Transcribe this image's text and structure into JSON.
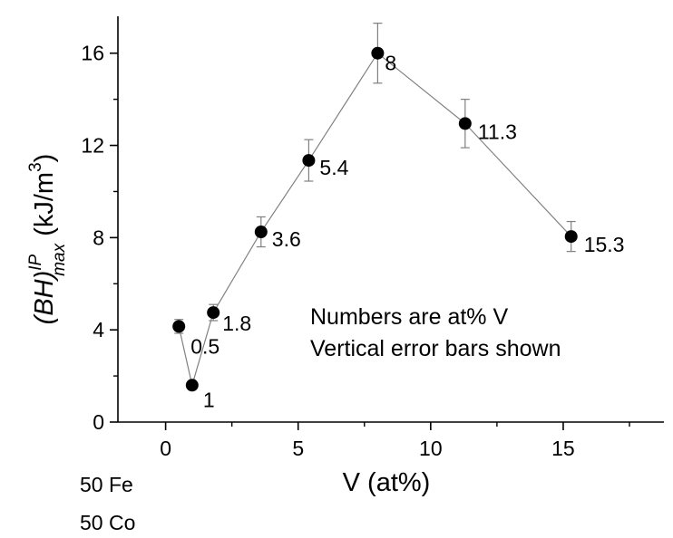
{
  "chart_data": {
    "type": "scatter",
    "connected": true,
    "xlabel": "V (at%)",
    "ylabel": {
      "base": "(BH)",
      "superscript": "IP",
      "subscript": "max",
      "unit_prefix": " (kJ/m",
      "unit_power": "3",
      "unit_suffix": ")"
    },
    "xlim": [
      -1.8,
      18.8
    ],
    "ylim": [
      0,
      17.6
    ],
    "x_ticks": [
      0,
      5,
      10,
      15
    ],
    "y_ticks": [
      0,
      4,
      8,
      12,
      16
    ],
    "x_tick_labels": [
      "0",
      "5",
      "10",
      "15"
    ],
    "y_tick_labels": [
      "0",
      "4",
      "8",
      "12",
      "16"
    ],
    "grid": false,
    "series": [
      {
        "points": [
          {
            "x": 0.5,
            "y": 4.15,
            "err": 0.3,
            "label": "0.5"
          },
          {
            "x": 1.0,
            "y": 1.6,
            "err": 0.0,
            "label": "1"
          },
          {
            "x": 1.8,
            "y": 4.75,
            "err": 0.35,
            "label": "1.8"
          },
          {
            "x": 3.6,
            "y": 8.25,
            "err": 0.65,
            "label": "3.6"
          },
          {
            "x": 5.4,
            "y": 11.35,
            "err": 0.9,
            "label": "5.4"
          },
          {
            "x": 8.0,
            "y": 16.0,
            "err": 1.3,
            "label": "8"
          },
          {
            "x": 11.3,
            "y": 12.95,
            "err": 1.05,
            "label": "11.3"
          },
          {
            "x": 15.3,
            "y": 8.05,
            "err": 0.65,
            "label": "15.3"
          }
        ]
      }
    ],
    "annotations": [
      "Numbers are at% V",
      "Vertical error bars shown"
    ],
    "composition_labels": [
      "50 Fe",
      "50 Co"
    ],
    "colors": {
      "marker": "#000000",
      "line": "#808080",
      "errorbar": "#808080",
      "axis": "#000000"
    }
  }
}
